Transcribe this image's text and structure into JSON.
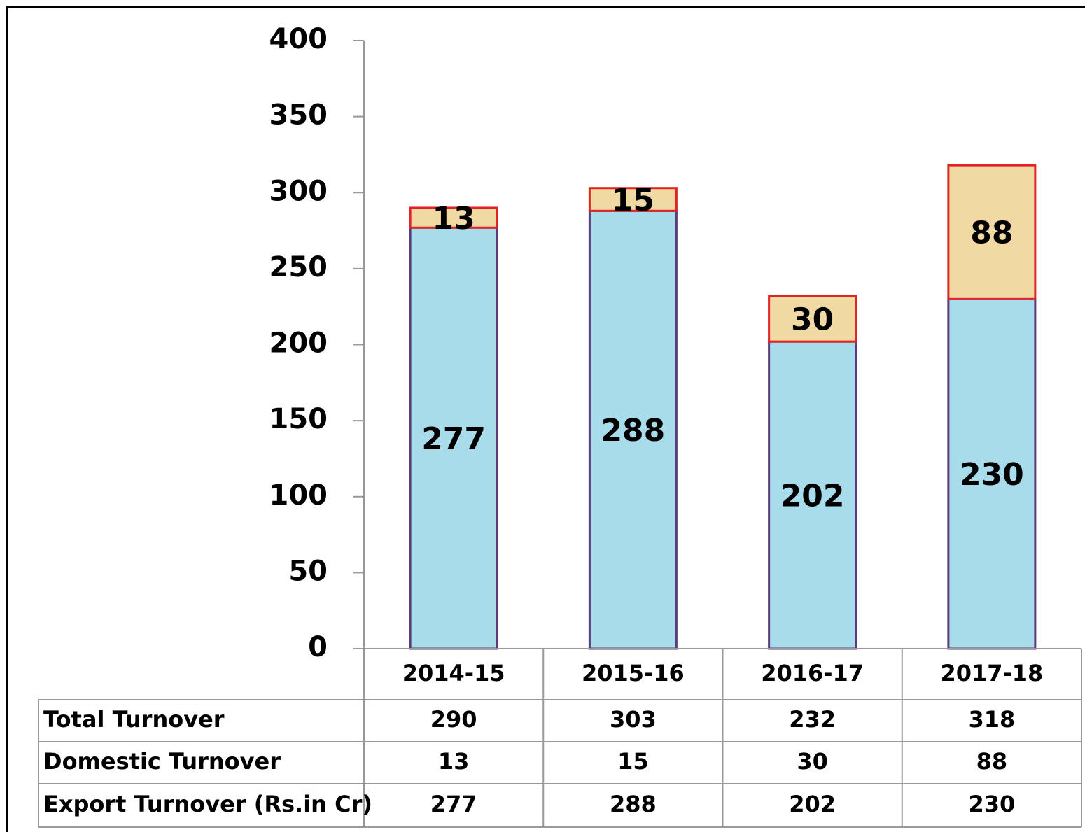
{
  "chart_data": {
    "type": "bar",
    "stacked": true,
    "categories": [
      "2014-15",
      "2015-16",
      "2016-17",
      "2017-18"
    ],
    "series": [
      {
        "name": "Export Turnover (Rs.in Cr)",
        "color": "#a9dcea",
        "values": [
          277,
          288,
          202,
          230
        ]
      },
      {
        "name": "Domestic Turnover",
        "color": "#f1d9a3",
        "values": [
          13,
          15,
          30,
          88
        ]
      }
    ],
    "total": {
      "name": "Total Turnover",
      "values": [
        290,
        303,
        232,
        318
      ]
    },
    "ylim": [
      0,
      400
    ],
    "yticks": [
      0,
      50,
      100,
      150,
      200,
      250,
      300,
      350,
      400
    ],
    "grid": false
  }
}
